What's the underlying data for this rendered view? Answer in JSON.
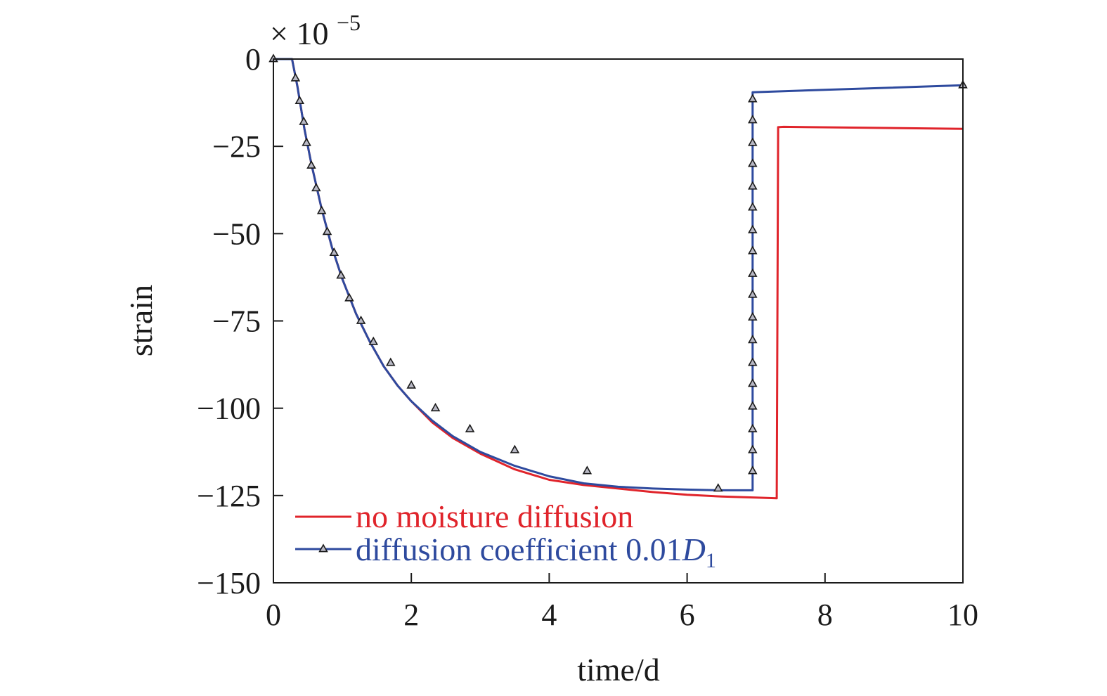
{
  "chart_data": {
    "type": "line",
    "title": "",
    "xlabel": "time/d",
    "ylabel": "strain",
    "y_multiplier": "× 10",
    "y_multiplier_exp": "−5",
    "xlim": [
      0,
      10
    ],
    "ylim": [
      -150,
      0
    ],
    "xticks": [
      0,
      2,
      4,
      6,
      8,
      10
    ],
    "yticks": [
      0,
      -25,
      -50,
      -75,
      -100,
      -125,
      -150
    ],
    "xtick_labels": [
      "0",
      "2",
      "4",
      "6",
      "8",
      "10"
    ],
    "ytick_labels": [
      "0",
      "−25",
      "−50",
      "−75",
      "−100",
      "−125",
      "−150"
    ],
    "grid": false,
    "legend_position": "bottom-left",
    "series": [
      {
        "name": "no moisture diffusion",
        "color": "#e0242b",
        "marker": "none",
        "x": [
          0,
          0.27,
          0.35,
          0.45,
          0.55,
          0.7,
          0.85,
          1.0,
          1.2,
          1.4,
          1.6,
          1.8,
          2.0,
          2.3,
          2.6,
          3.0,
          3.5,
          4.0,
          4.5,
          5.0,
          5.5,
          6.0,
          6.5,
          7.0,
          7.3,
          7.32,
          7.4,
          10.0
        ],
        "y": [
          0,
          0,
          -8,
          -20,
          -30,
          -43,
          -54,
          -63,
          -73,
          -81,
          -88,
          -93.5,
          -98,
          -104,
          -108.5,
          -113,
          -117.5,
          -120.5,
          -122,
          -123,
          -124,
          -124.8,
          -125.3,
          -125.6,
          -125.8,
          -19.5,
          -19.4,
          -20
        ]
      },
      {
        "name_prefix": "diffusion coefficient 0.01",
        "name_symbol": "D",
        "name_subscript": "1",
        "color": "#2e4a9e",
        "marker": "triangle",
        "x": [
          0,
          0.27,
          0.35,
          0.45,
          0.55,
          0.7,
          0.85,
          1.0,
          1.2,
          1.4,
          1.6,
          1.8,
          2.0,
          2.3,
          2.6,
          3.0,
          3.5,
          4.0,
          4.5,
          5.0,
          5.5,
          6.0,
          6.5,
          6.95,
          6.95,
          10.0
        ],
        "y": [
          0,
          0,
          -8,
          -20,
          -30,
          -43,
          -54,
          -63,
          -73,
          -81,
          -88,
          -93.5,
          -98,
          -103.5,
          -108,
          -112.5,
          -116.5,
          -119.5,
          -121.5,
          -122.5,
          -123,
          -123.3,
          -123.5,
          -123.5,
          -9.5,
          -7.5
        ]
      }
    ],
    "markers": {
      "x": [
        0,
        0.32,
        0.38,
        0.44,
        0.48,
        0.55,
        0.62,
        0.7,
        0.78,
        0.88,
        0.98,
        1.1,
        1.27,
        1.45,
        1.7,
        2.0,
        2.35,
        2.85,
        3.5,
        4.55,
        6.45,
        6.95,
        6.95,
        6.95,
        6.95,
        6.95,
        6.95,
        6.95,
        6.95,
        6.95,
        6.95,
        6.95,
        6.95,
        6.95,
        6.95,
        6.95,
        6.95,
        6.95,
        6.95,
        10.0
      ],
      "y": [
        0,
        -5.5,
        -12,
        -18,
        -24,
        -30.5,
        -37,
        -43.5,
        -49.5,
        -55.5,
        -62,
        -68.5,
        -75,
        -81,
        -87,
        -93.5,
        -100,
        -106,
        -112,
        -118,
        -123,
        -118,
        -112,
        -106,
        -99.5,
        -93,
        -87,
        -80.5,
        -74,
        -67.5,
        -61.5,
        -55,
        -49,
        -42.5,
        -36.5,
        -30,
        -24,
        -17.5,
        -11.5,
        -7.5
      ]
    }
  }
}
